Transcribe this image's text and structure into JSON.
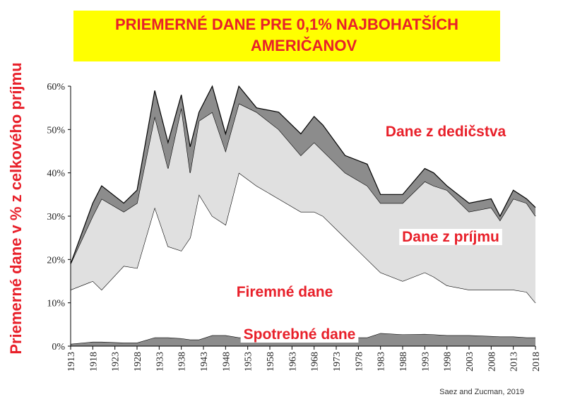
{
  "chart_data": {
    "type": "stacked_area",
    "title": "PRIEMERNÉ DANE PRE 0,1% NAJBOHATŠÍCH AMERIČANOV",
    "y_label": "Priemerné dane v % z celkového príjmu",
    "source": "Saez and Zucman, 2019",
    "x": [
      1913,
      1918,
      1920,
      1925,
      1928,
      1932,
      1935,
      1938,
      1940,
      1942,
      1945,
      1948,
      1951,
      1955,
      1960,
      1965,
      1968,
      1970,
      1975,
      1980,
      1983,
      1988,
      1993,
      1995,
      1998,
      2003,
      2008,
      2010,
      2013,
      2016,
      2018
    ],
    "series": [
      {
        "name": "Spotrebné dane",
        "color": "#8c8c8c",
        "values": [
          0.5,
          1,
          1,
          0.8,
          0.8,
          2,
          2,
          1.8,
          1.5,
          1.5,
          2.5,
          2.5,
          2,
          2,
          2,
          2,
          2,
          2,
          2,
          2,
          3,
          2.7,
          2.8,
          2.7,
          2.5,
          2.5,
          2.3,
          2.2,
          2.2,
          2,
          2
        ]
      },
      {
        "name": "Firemné dane",
        "color": "#ffffff",
        "values": [
          12.5,
          14,
          12,
          17.7,
          17.2,
          30,
          21,
          20.2,
          23.5,
          33.5,
          27.5,
          25.5,
          38,
          35,
          32,
          29,
          29,
          28,
          23,
          18,
          14,
          12.3,
          14.2,
          13.3,
          11.5,
          10.5,
          10.7,
          10.8,
          10.8,
          10.5,
          8
        ]
      },
      {
        "name": "Dane z príjmu",
        "color": "#e0e0e0",
        "values": [
          6,
          15,
          21,
          12.5,
          15,
          21,
          18,
          33,
          15,
          17,
          24,
          17,
          16,
          17,
          16,
          13,
          16,
          15,
          15,
          17,
          16,
          18,
          21,
          21,
          22,
          18,
          19,
          16,
          21,
          20.5,
          20
        ]
      },
      {
        "name": "Dane z dedičstva",
        "color": "#8c8c8c",
        "values": [
          0,
          3,
          3,
          2,
          3,
          6,
          6,
          3,
          6,
          2,
          6,
          4,
          4,
          1,
          4,
          5,
          6,
          6,
          4,
          5,
          2,
          2,
          3,
          3,
          1,
          2,
          2,
          1,
          2,
          1,
          2
        ]
      }
    ],
    "xlim": [
      1913,
      2018
    ],
    "xticks": [
      1913,
      1918,
      1923,
      1928,
      1933,
      1938,
      1943,
      1948,
      1953,
      1958,
      1963,
      1968,
      1973,
      1978,
      1983,
      1988,
      1993,
      1998,
      2003,
      2008,
      2013,
      2018
    ],
    "ylim": [
      0,
      60
    ],
    "yticks": [
      {
        "value": 0,
        "label": "0%"
      },
      {
        "value": 10,
        "label": "10%"
      },
      {
        "value": 20,
        "label": "20%"
      },
      {
        "value": 30,
        "label": "30%"
      },
      {
        "value": 40,
        "label": "40%"
      },
      {
        "value": 50,
        "label": "50%"
      },
      {
        "value": 60,
        "label": "60%"
      }
    ]
  }
}
